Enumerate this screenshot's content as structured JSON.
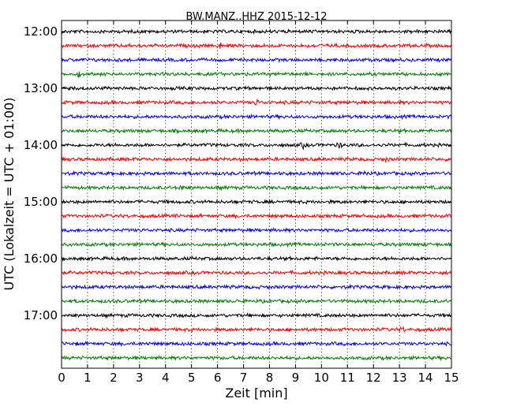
{
  "chart_data": {
    "type": "line",
    "title": "BW.MANZ..HHZ 2015-12-12",
    "xlabel": "Zeit  [min]",
    "ylabel": "UTC (Lokalzeit = UTC + 01:00)",
    "xlim": [
      0,
      15
    ],
    "x_ticks": [
      "0",
      "1",
      "2",
      "3",
      "4",
      "5",
      "6",
      "7",
      "8",
      "9",
      "10",
      "11",
      "12",
      "13",
      "14",
      "15"
    ],
    "y_ticks": [
      "12:00",
      "13:00",
      "14:00",
      "15:00",
      "16:00",
      "17:00"
    ],
    "vertical_grid": true,
    "grid_style": "dotted",
    "trace_interval_minutes": 15,
    "trace_colors": [
      "#000000",
      "#ff0000",
      "#0000ff",
      "#008000"
    ],
    "traces": [
      {
        "start": "12:00",
        "color": "#000000",
        "events": []
      },
      {
        "start": "12:15",
        "color": "#ff0000",
        "events": [
          6.1
        ]
      },
      {
        "start": "12:30",
        "color": "#0000ff",
        "events": []
      },
      {
        "start": "12:45",
        "color": "#008000",
        "events": [
          0.7
        ]
      },
      {
        "start": "13:00",
        "color": "#000000",
        "events": []
      },
      {
        "start": "13:15",
        "color": "#ff0000",
        "events": [
          7.5
        ]
      },
      {
        "start": "13:30",
        "color": "#0000ff",
        "events": []
      },
      {
        "start": "13:45",
        "color": "#008000",
        "events": []
      },
      {
        "start": "14:00",
        "color": "#000000",
        "events": [
          9.3,
          10.7
        ]
      },
      {
        "start": "14:15",
        "color": "#ff0000",
        "events": [
          12.5
        ]
      },
      {
        "start": "14:30",
        "color": "#0000ff",
        "events": [
          11.7
        ]
      },
      {
        "start": "14:45",
        "color": "#008000",
        "events": [
          4.6
        ]
      },
      {
        "start": "15:00",
        "color": "#000000",
        "events": []
      },
      {
        "start": "15:15",
        "color": "#ff0000",
        "events": []
      },
      {
        "start": "15:30",
        "color": "#0000ff",
        "events": []
      },
      {
        "start": "15:45",
        "color": "#008000",
        "events": []
      },
      {
        "start": "16:00",
        "color": "#000000",
        "events": []
      },
      {
        "start": "16:15",
        "color": "#ff0000",
        "events": []
      },
      {
        "start": "16:30",
        "color": "#0000ff",
        "events": []
      },
      {
        "start": "16:45",
        "color": "#008000",
        "events": []
      },
      {
        "start": "17:00",
        "color": "#000000",
        "events": []
      },
      {
        "start": "17:15",
        "color": "#ff0000",
        "events": [
          13.1
        ]
      },
      {
        "start": "17:30",
        "color": "#0000ff",
        "events": []
      },
      {
        "start": "17:45",
        "color": "#008000",
        "events": []
      }
    ]
  }
}
